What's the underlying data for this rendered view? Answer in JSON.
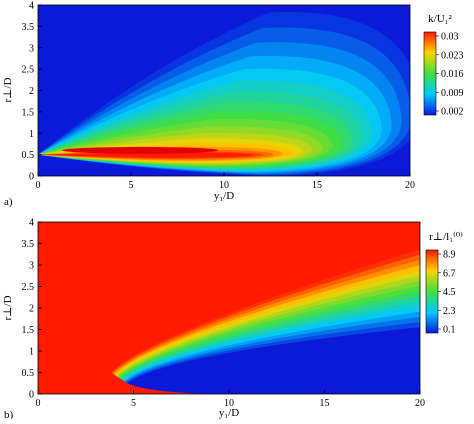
{
  "chart_data": [
    {
      "type": "heatmap",
      "panel_label": "a)",
      "xlabel": "y₁/D",
      "ylabel": "r⊥/D",
      "xlim": [
        0,
        20
      ],
      "ylim": [
        0,
        4
      ],
      "xticks": [
        "0",
        "5",
        "10",
        "15",
        "20"
      ],
      "yticks": [
        "0",
        "0.5",
        "1",
        "1.5",
        "2",
        "2.5",
        "3",
        "3.5",
        "4"
      ],
      "colorbar": {
        "title": "k/U₁²",
        "ticks": [
          "0.03",
          "0.023",
          "0.016",
          "0.009",
          "0.002"
        ],
        "range": [
          0.002,
          0.03
        ],
        "colors": [
          "#ff1a00",
          "#ffd200",
          "#40e040",
          "#00c8ff",
          "#0a1ad8"
        ]
      },
      "field": {
        "description_of_shape": "wedge-shaped jet spreading from (0,0.5); peak near y1/D=5, r/D=0.6",
        "origin": [
          0,
          0.5
        ],
        "peak": [
          5.5,
          0.6
        ],
        "peak_value": 0.03,
        "background_value": 0.002
      }
    },
    {
      "type": "heatmap",
      "panel_label": "b)",
      "xlabel": "y₁/D",
      "ylabel": "r⊥/D",
      "xlim": [
        0,
        20
      ],
      "ylim": [
        0,
        4
      ],
      "xticks": [
        "0",
        "5",
        "10",
        "15",
        "20"
      ],
      "yticks": [
        "0",
        "0.5",
        "1",
        "1.5",
        "2",
        "2.5",
        "3",
        "3.5",
        "4"
      ],
      "colorbar": {
        "title": "r⊥/l₁⁽⁰⁾",
        "ticks": [
          "8.9",
          "6.7",
          "4.5",
          "2.3",
          "0.1"
        ],
        "range": [
          0.1,
          8.9
        ],
        "colors": [
          "#ff1a00",
          "#ffd200",
          "#40e040",
          "#00c8ff",
          "#0a1ad8"
        ]
      },
      "field": {
        "description_of_shape": "red background with wedge of low values opening from (3.8,0.5) toward (20,3.5)",
        "wedge_apex": [
          3.8,
          0.5
        ],
        "wedge_upper_end": [
          20,
          3.5
        ],
        "wedge_lower_end": [
          9.5,
          0
        ],
        "background_value": 8.9,
        "min_value": 0.1
      }
    }
  ]
}
